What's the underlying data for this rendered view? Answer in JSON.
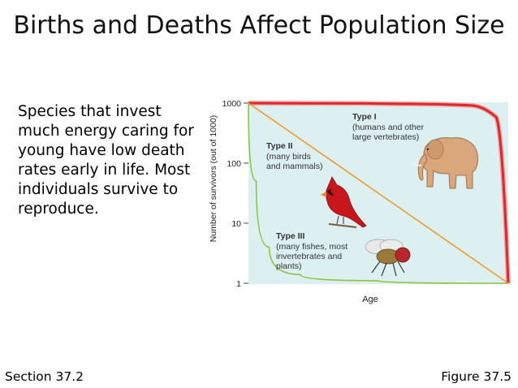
{
  "slide": {
    "title": "Births and Deaths Affect Population Size",
    "body": "Species that invest much energy caring for young have low death rates early in life. Most individuals survive to reproduce.",
    "footer_left": "Section 37.2",
    "footer_right": "Figure 37.5"
  },
  "chart_data": {
    "type": "line",
    "ylabel": "Number of survivors (out of 1000)",
    "xlabel": "Age",
    "yscale": "log",
    "ylim": [
      1,
      1000
    ],
    "yticks": [
      "1000",
      "100",
      "10",
      "1"
    ],
    "series": [
      {
        "name": "Type I",
        "desc": "(humans and other large vertebrates)",
        "color": "#e3262b",
        "points": [
          [
            0,
            1000
          ],
          [
            0.3,
            990
          ],
          [
            0.6,
            970
          ],
          [
            0.85,
            920
          ],
          [
            0.95,
            600
          ],
          [
            1.0,
            1
          ]
        ]
      },
      {
        "name": "Type II",
        "desc": "(many birds and mammals)",
        "color": "#f09a2a",
        "points": [
          [
            0,
            1000
          ],
          [
            1.0,
            1
          ]
        ]
      },
      {
        "name": "Type III",
        "desc": "(many fishes, most invertebrates and plants)",
        "color": "#8cc63f",
        "points": [
          [
            0,
            1000
          ],
          [
            0.03,
            50
          ],
          [
            0.08,
            4
          ],
          [
            0.2,
            1.4
          ],
          [
            0.5,
            1.1
          ],
          [
            1.0,
            1
          ]
        ]
      }
    ],
    "colors": {
      "plot_background": "#dcf0f2",
      "highlight_glow": "#ff2a2a"
    }
  }
}
